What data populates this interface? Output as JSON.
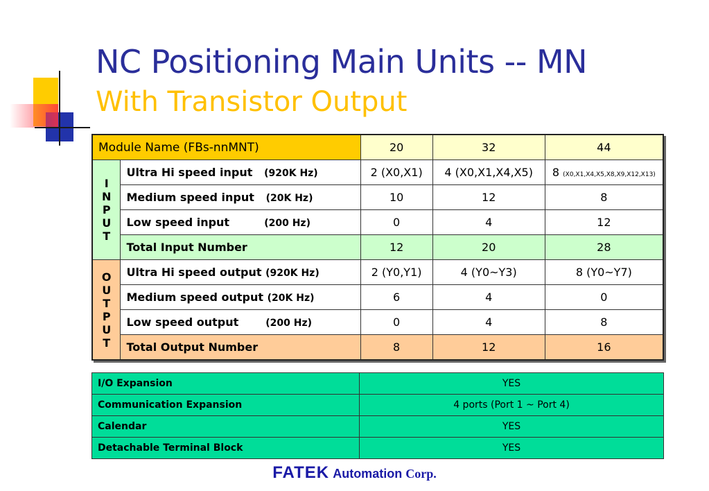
{
  "title": "NC Positioning Main Units -- MN",
  "subtitle": "With Transistor Output",
  "colors": {
    "title": "#2a2e9a",
    "subtitle": "#ffc000",
    "input_bg": "#ccffcc",
    "output_bg": "#ffcc99",
    "expansion_bg": "#00dd99",
    "header_bg": "#ffffcc",
    "module_bg": "#ffcc00"
  },
  "header": {
    "module": "Module Name (FBs-nnMNT)",
    "c1": "20",
    "c2": "32",
    "c3": "44"
  },
  "input": {
    "side": [
      "I",
      "N",
      "P",
      "U",
      "T"
    ],
    "rows": [
      {
        "label": "Ultra Hi speed input",
        "hz": "(920K Hz)",
        "v1": "2 (X0,X1)",
        "v2": "4 (X0,X1,X4,X5)",
        "v3": "8",
        "v3_note": "(X0,X1,X4,X5,X8,X9,X12,X13)"
      },
      {
        "label": "Medium speed input",
        "hz": "(20K Hz)",
        "v1": "10",
        "v2": "12",
        "v3": "8"
      },
      {
        "label": "Low speed input",
        "hz": "(200 Hz)",
        "v1": "0",
        "v2": "4",
        "v3": "12"
      }
    ],
    "total": {
      "label": "Total Input Number",
      "v1": "12",
      "v2": "20",
      "v3": "28"
    }
  },
  "output": {
    "side": [
      "O",
      "U",
      "T",
      "P",
      "U",
      "T"
    ],
    "rows": [
      {
        "label": "Ultra Hi speed output",
        "hz": "(920K Hz)",
        "v1": "2 (Y0,Y1)",
        "v2": "4 (Y0~Y3)",
        "v3": "8 (Y0~Y7)"
      },
      {
        "label": "Medium speed output",
        "hz": "(20K Hz)",
        "v1": "6",
        "v2": "4",
        "v3": "0"
      },
      {
        "label": "Low speed output",
        "hz": "(200 Hz)",
        "v1": "0",
        "v2": "4",
        "v3": "8"
      }
    ],
    "total": {
      "label": "Total Output Number",
      "v1": "8",
      "v2": "12",
      "v3": "16"
    }
  },
  "expansion": [
    {
      "label": "I/O Expansion",
      "value": "YES"
    },
    {
      "label": "Communication Expansion",
      "value": "4 ports (Port 1 ~ Port 4)"
    },
    {
      "label": "Calendar",
      "value": "YES"
    },
    {
      "label": "Detachable Terminal Block",
      "value": "YES"
    }
  ],
  "footer": {
    "brand": "FATEK",
    "automation": "Automation",
    "corp": "Corp."
  }
}
